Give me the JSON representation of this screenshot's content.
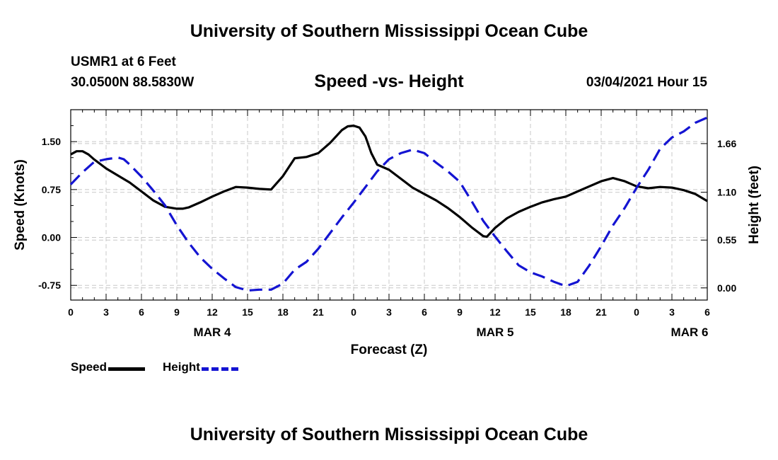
{
  "header": {
    "title": "University of Southern Mississippi Ocean Cube",
    "station": "USMR1 at 6 Feet",
    "coords": "30.0500N 88.5830W",
    "subtitle": "Speed -vs- Height",
    "datetime": "03/04/2021 Hour 15"
  },
  "footer": {
    "title": "University of Southern Mississippi Ocean Cube"
  },
  "legend": {
    "speed_label": "Speed",
    "height_label": "Height"
  },
  "colors": {
    "speed": "#000000",
    "height": "#1414d2",
    "grid": "#c8c8c8"
  },
  "chart_data": {
    "type": "line",
    "title": "Speed -vs- Height",
    "xlabel": "Forecast (Z)",
    "ylabel": "Speed (Knots)",
    "y2label": "Height (feet)",
    "x_range": [
      0,
      54
    ],
    "ylim": [
      -0.98,
      2.0
    ],
    "y2lim": [
      -0.14,
      2.05
    ],
    "y_ticks": [
      "1.50",
      "0.75",
      "0.00",
      "-0.75"
    ],
    "y_tick_values": [
      1.5,
      0.75,
      0.0,
      -0.75
    ],
    "y2_ticks": [
      "1.66",
      "1.10",
      "0.55",
      "0.00"
    ],
    "y2_tick_values": [
      1.66,
      1.1,
      0.55,
      0.0
    ],
    "x_ticks": [
      {
        "x": 0,
        "label": "0"
      },
      {
        "x": 3,
        "label": "3"
      },
      {
        "x": 6,
        "label": "6"
      },
      {
        "x": 9,
        "label": "9"
      },
      {
        "x": 12,
        "label": "12"
      },
      {
        "x": 15,
        "label": "15"
      },
      {
        "x": 18,
        "label": "18"
      },
      {
        "x": 21,
        "label": "21"
      },
      {
        "x": 24,
        "label": "0"
      },
      {
        "x": 27,
        "label": "3"
      },
      {
        "x": 30,
        "label": "6"
      },
      {
        "x": 33,
        "label": "9"
      },
      {
        "x": 36,
        "label": "12"
      },
      {
        "x": 39,
        "label": "15"
      },
      {
        "x": 42,
        "label": "18"
      },
      {
        "x": 45,
        "label": "21"
      },
      {
        "x": 48,
        "label": "0"
      },
      {
        "x": 51,
        "label": "3"
      },
      {
        "x": 54,
        "label": "6"
      }
    ],
    "date_labels": [
      {
        "x": 12,
        "label": "MAR 4"
      },
      {
        "x": 36,
        "label": "MAR 5"
      },
      {
        "x": 52.5,
        "label": "MAR 6"
      }
    ],
    "series": [
      {
        "name": "Speed",
        "axis": "left",
        "x": [
          0,
          0.5,
          1,
          1.5,
          2,
          3,
          4,
          5,
          6,
          7,
          8,
          9,
          9.5,
          10,
          11,
          12,
          13,
          14,
          15,
          16,
          17,
          18,
          19,
          20,
          21,
          22,
          23,
          23.5,
          24,
          24.5,
          25,
          25.5,
          26,
          27,
          28,
          29,
          30,
          31,
          32,
          33,
          34,
          35,
          35.3,
          36,
          37,
          38,
          39,
          40,
          41,
          42,
          43,
          44,
          45,
          46,
          47,
          48,
          49,
          50,
          51,
          52,
          53,
          54
        ],
        "y": [
          1.3,
          1.35,
          1.35,
          1.3,
          1.22,
          1.08,
          0.97,
          0.86,
          0.72,
          0.58,
          0.48,
          0.45,
          0.45,
          0.47,
          0.55,
          0.64,
          0.72,
          0.79,
          0.78,
          0.76,
          0.75,
          0.96,
          1.24,
          1.26,
          1.32,
          1.48,
          1.68,
          1.74,
          1.75,
          1.72,
          1.58,
          1.32,
          1.14,
          1.06,
          0.92,
          0.78,
          0.68,
          0.58,
          0.46,
          0.32,
          0.16,
          0.02,
          0.01,
          0.15,
          0.3,
          0.4,
          0.48,
          0.55,
          0.6,
          0.64,
          0.72,
          0.8,
          0.88,
          0.93,
          0.88,
          0.8,
          0.77,
          0.79,
          0.78,
          0.74,
          0.68,
          0.57
        ]
      },
      {
        "name": "Height",
        "axis": "right",
        "x": [
          0,
          1,
          2,
          3,
          4,
          4.5,
          5,
          6,
          7,
          8,
          9,
          10,
          11,
          12,
          13,
          14,
          15,
          16,
          17,
          18,
          19,
          20,
          21,
          22,
          23,
          24,
          25,
          26,
          27,
          28,
          29,
          30,
          31,
          32,
          33,
          34,
          35,
          36,
          37,
          38,
          39,
          40,
          41,
          42,
          43,
          44,
          45,
          46,
          47,
          48,
          49,
          50,
          51,
          52,
          53,
          54
        ],
        "y": [
          1.19,
          1.33,
          1.45,
          1.48,
          1.5,
          1.48,
          1.42,
          1.28,
          1.12,
          0.95,
          0.72,
          0.52,
          0.35,
          0.22,
          0.11,
          0.01,
          -0.03,
          -0.02,
          -0.02,
          0.05,
          0.21,
          0.3,
          0.45,
          0.63,
          0.81,
          0.98,
          1.16,
          1.34,
          1.48,
          1.55,
          1.59,
          1.55,
          1.44,
          1.34,
          1.22,
          1.0,
          0.77,
          0.59,
          0.42,
          0.26,
          0.18,
          0.13,
          0.07,
          0.02,
          0.07,
          0.26,
          0.48,
          0.72,
          0.92,
          1.15,
          1.36,
          1.6,
          1.73,
          1.8,
          1.9,
          1.96
        ]
      }
    ]
  }
}
